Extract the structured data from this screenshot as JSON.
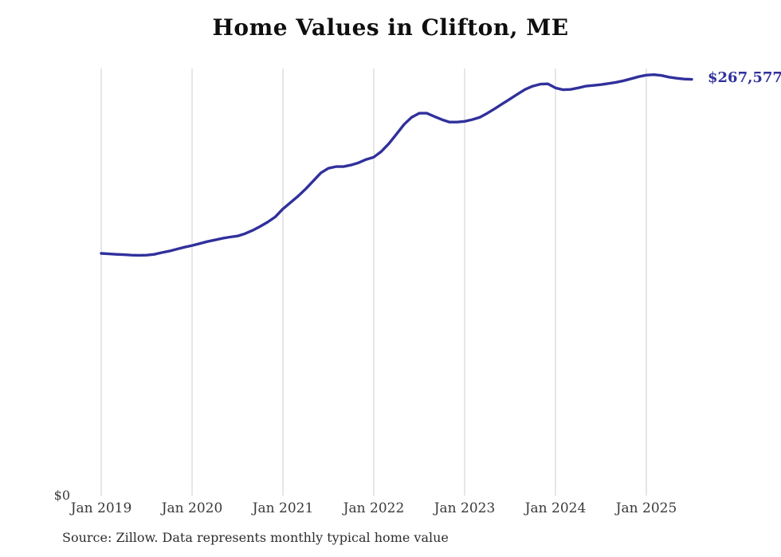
{
  "title": "Home Values in Clifton, ME",
  "y_zero_label": "$0",
  "end_label": "$267,577",
  "source_note": "Source: Zillow. Data represents monthly typical home value",
  "colors": {
    "line": "#30309c",
    "end_label": "#30309c",
    "grid": "#cccccc",
    "title_text": "#0f0f0f",
    "axis_text": "#3a3a3a",
    "background": "#ffffff"
  },
  "chart_data": {
    "type": "line",
    "title": "Home Values in Clifton, ME",
    "xlabel": "",
    "ylabel": "",
    "grid": "vertical-only",
    "legend": "none",
    "ylim": [
      0,
      274500
    ],
    "y_tick_labels": [
      "$0"
    ],
    "x_tick_labels": [
      "Jan 2019",
      "Jan 2020",
      "Jan 2021",
      "Jan 2022",
      "Jan 2023",
      "Jan 2024",
      "Jan 2025"
    ],
    "end_annotation": "$267,577",
    "series": [
      {
        "name": "Monthly typical home value",
        "x": [
          "2019-01",
          "2019-02",
          "2019-03",
          "2019-04",
          "2019-05",
          "2019-06",
          "2019-07",
          "2019-08",
          "2019-09",
          "2019-10",
          "2019-11",
          "2019-12",
          "2020-01",
          "2020-02",
          "2020-03",
          "2020-04",
          "2020-05",
          "2020-06",
          "2020-07",
          "2020-08",
          "2020-09",
          "2020-10",
          "2020-11",
          "2020-12",
          "2021-01",
          "2021-02",
          "2021-03",
          "2021-04",
          "2021-05",
          "2021-06",
          "2021-07",
          "2021-08",
          "2021-09",
          "2021-10",
          "2021-11",
          "2021-12",
          "2022-01",
          "2022-02",
          "2022-03",
          "2022-04",
          "2022-05",
          "2022-06",
          "2022-07",
          "2022-08",
          "2022-09",
          "2022-10",
          "2022-11",
          "2022-12",
          "2023-01",
          "2023-02",
          "2023-03",
          "2023-04",
          "2023-05",
          "2023-06",
          "2023-07",
          "2023-08",
          "2023-09",
          "2023-10",
          "2023-11",
          "2023-12",
          "2024-01",
          "2024-02",
          "2024-03",
          "2024-04",
          "2024-05",
          "2024-06",
          "2024-07",
          "2024-08",
          "2024-09",
          "2024-10",
          "2024-11",
          "2024-12",
          "2025-01",
          "2025-02",
          "2025-03",
          "2025-04",
          "2025-05",
          "2025-06",
          "2025-07"
        ],
        "values": [
          155700,
          155400,
          155100,
          154900,
          154600,
          154500,
          154600,
          155100,
          156200,
          157200,
          158500,
          159700,
          160800,
          162000,
          163300,
          164300,
          165400,
          166200,
          166900,
          168400,
          170500,
          173100,
          175900,
          179200,
          184300,
          188400,
          192500,
          197100,
          202200,
          207400,
          210400,
          211500,
          211500,
          212500,
          214000,
          216100,
          217600,
          221200,
          226300,
          232400,
          238600,
          243200,
          245800,
          245800,
          243700,
          241700,
          240100,
          240100,
          240600,
          241700,
          243200,
          245800,
          248800,
          251900,
          255000,
          258100,
          261100,
          263200,
          264500,
          264700,
          262100,
          260900,
          261100,
          262100,
          263200,
          263700,
          264200,
          264900,
          265700,
          266700,
          268000,
          269300,
          270300,
          270600,
          270100,
          269000,
          268300,
          267800,
          267577
        ]
      }
    ]
  }
}
